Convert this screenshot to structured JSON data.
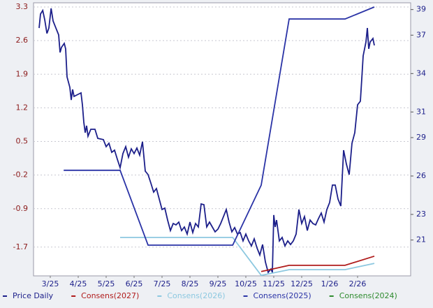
{
  "chart_data": {
    "type": "line",
    "xlim": [
      -0.1,
      13.4
    ],
    "xticks": [
      {
        "value": 0.5,
        "label": "3/25"
      },
      {
        "value": 1.5,
        "label": "4/25"
      },
      {
        "value": 2.5,
        "label": "5/25"
      },
      {
        "value": 3.5,
        "label": "6/25"
      },
      {
        "value": 4.5,
        "label": "7/25"
      },
      {
        "value": 5.5,
        "label": "8/25"
      },
      {
        "value": 6.5,
        "label": "9/25"
      },
      {
        "value": 7.5,
        "label": "10/25"
      },
      {
        "value": 8.5,
        "label": "11/25"
      },
      {
        "value": 9.5,
        "label": "12/25"
      },
      {
        "value": 10.5,
        "label": "1/26"
      },
      {
        "value": 11.5,
        "label": "2/26"
      }
    ],
    "ylim": [
      -2.3,
      3.3
    ],
    "yticks": [
      -1.7,
      -0.9,
      -0.2,
      0.5,
      1.2,
      1.9,
      2.6,
      3.3
    ],
    "y2lim": [
      18.2,
      39.2
    ],
    "y2ticks": [
      21,
      23,
      26,
      29,
      31,
      34,
      37,
      39
    ],
    "grid": true,
    "series": [
      {
        "name": "Price Daily",
        "color": "#1c1f8a",
        "axis": "y2",
        "x": [
          0.1,
          0.15,
          0.23,
          0.3,
          0.38,
          0.45,
          0.53,
          0.6,
          0.68,
          0.75,
          0.8,
          0.85,
          0.9,
          1.0,
          1.05,
          1.1,
          1.2,
          1.25,
          1.3,
          1.35,
          1.5,
          1.6,
          1.65,
          1.7,
          1.75,
          1.8,
          1.85,
          1.95,
          2.1,
          2.2,
          2.4,
          2.5,
          2.6,
          2.7,
          2.8,
          2.9,
          3.0,
          3.1,
          3.2,
          3.3,
          3.4,
          3.5,
          3.6,
          3.7,
          3.8,
          3.9,
          4.0,
          4.1,
          4.2,
          4.3,
          4.4,
          4.5,
          4.6,
          4.7,
          4.8,
          4.9,
          5.0,
          5.1,
          5.2,
          5.3,
          5.4,
          5.5,
          5.6,
          5.7,
          5.8,
          5.9,
          6.0,
          6.1,
          6.2,
          6.3,
          6.4,
          6.5,
          6.6,
          6.7,
          6.8,
          6.9,
          7.0,
          7.1,
          7.2,
          7.3,
          7.4,
          7.5,
          7.6,
          7.7,
          7.8,
          7.9,
          8.0,
          8.1,
          8.2,
          8.3,
          8.4,
          8.45,
          8.5,
          8.55,
          8.6,
          8.65,
          8.7,
          8.8,
          8.9,
          9.0,
          9.1,
          9.2,
          9.3,
          9.4,
          9.5,
          9.6,
          9.7,
          9.8,
          9.9,
          10.0,
          10.1,
          10.2,
          10.3,
          10.4,
          10.5,
          10.6,
          10.7,
          10.8,
          10.9,
          11.0,
          11.1,
          11.2,
          11.3,
          11.4,
          11.5,
          11.6,
          11.65,
          11.7,
          11.8,
          11.85,
          11.9,
          11.95,
          12.05,
          12.1
        ],
        "values": [
          37.56,
          38.65,
          38.93,
          38.22,
          37.13,
          37.56,
          39.09,
          38.11,
          37.67,
          37.29,
          37.02,
          35.65,
          36.04,
          36.36,
          35.93,
          33.74,
          32.93,
          31.94,
          32.76,
          32.22,
          32.38,
          32.49,
          31.56,
          30.2,
          29.38,
          29.93,
          29.11,
          29.65,
          29.65,
          28.94,
          28.84,
          28.29,
          28.56,
          27.85,
          28.02,
          27.31,
          26.65,
          27.75,
          28.29,
          27.47,
          28.12,
          27.75,
          28.18,
          27.63,
          28.67,
          26.38,
          26.11,
          25.45,
          24.74,
          25.02,
          24.2,
          23.38,
          23.49,
          22.56,
          21.74,
          22.29,
          22.18,
          22.4,
          21.74,
          22.02,
          21.47,
          22.4,
          21.58,
          22.29,
          22.02,
          23.82,
          23.76,
          22.02,
          22.4,
          22.02,
          21.64,
          21.85,
          22.29,
          22.83,
          23.38,
          22.4,
          21.64,
          21.97,
          21.47,
          21.58,
          20.93,
          21.47,
          20.93,
          20.54,
          21.09,
          20.38,
          19.83,
          20.65,
          19.29,
          18.47,
          18.74,
          18.47,
          22.95,
          22.02,
          22.56,
          21.74,
          20.93,
          21.2,
          20.54,
          20.93,
          20.65,
          20.93,
          21.47,
          23.38,
          22.29,
          22.83,
          21.74,
          22.56,
          22.29,
          22.18,
          22.67,
          23.11,
          22.4,
          23.38,
          23.93,
          25.29,
          25.29,
          24.2,
          23.65,
          28.02,
          26.93,
          26.11,
          28.56,
          29.38,
          31.56,
          31.84,
          33.58,
          35.38,
          36.47,
          37.56,
          35.93,
          36.47,
          36.74,
          36.2
        ]
      },
      {
        "name": "Consens(2027)",
        "color": "#b01c1c",
        "x": [
          8.05,
          9.05,
          11.05,
          12.1
        ],
        "values": [
          -2.21,
          -2.08,
          -2.08,
          -1.89
        ]
      },
      {
        "name": "Consens(2026)",
        "color": "#8cc8e0",
        "x": [
          3.0,
          7.03,
          8.05,
          9.05,
          11.05,
          12.1
        ],
        "values": [
          -1.5,
          -1.5,
          -2.29,
          -2.17,
          -2.17,
          -2.04
        ]
      },
      {
        "name": "Consens(2025)",
        "color": "#2a33a6",
        "x": [
          0.98,
          3.0,
          4.0,
          7.03,
          8.05,
          9.05,
          11.05,
          12.1
        ],
        "values": [
          -0.1,
          -0.1,
          -1.66,
          -1.66,
          -0.41,
          3.05,
          3.05,
          3.3
        ]
      },
      {
        "name": "Consens(2024)",
        "color": "#2e8b2e",
        "x": [],
        "values": []
      }
    ]
  }
}
